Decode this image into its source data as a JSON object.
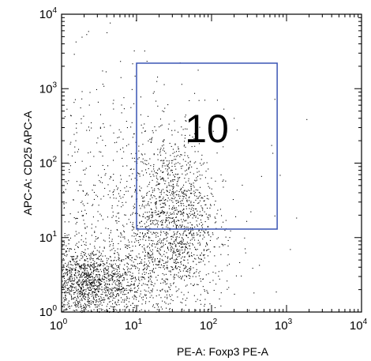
{
  "chart_data": {
    "type": "scatter",
    "xlabel": "PE-A: Foxp3 PE-A",
    "ylabel": "APC-A: CD25 APC-A",
    "xscale": "log",
    "yscale": "log",
    "xlim": [
      1,
      10000
    ],
    "ylim": [
      1,
      10000
    ],
    "x_ticks": [
      {
        "base": "10",
        "exp": "0"
      },
      {
        "base": "10",
        "exp": "1"
      },
      {
        "base": "10",
        "exp": "2"
      },
      {
        "base": "10",
        "exp": "3"
      },
      {
        "base": "10",
        "exp": "4"
      }
    ],
    "y_ticks": [
      {
        "base": "10",
        "exp": "0"
      },
      {
        "base": "10",
        "exp": "1"
      },
      {
        "base": "10",
        "exp": "2"
      },
      {
        "base": "10",
        "exp": "3"
      },
      {
        "base": "10",
        "exp": "4"
      }
    ],
    "gate": {
      "label": "10",
      "x_range": [
        10,
        750
      ],
      "y_range": [
        13,
        2200
      ],
      "color": "#3a55b4"
    },
    "populations": [
      {
        "cx": 2.2,
        "cy": 2.4,
        "sx": 0.6,
        "sy": 0.55,
        "n": 1500
      },
      {
        "cx": 30,
        "cy": 18,
        "sx": 0.45,
        "sy": 1.3,
        "n": 1300
      },
      {
        "cx": 3.5,
        "cy": 15,
        "sx": 0.9,
        "sy": 2.2,
        "n": 700
      },
      {
        "cx": 25,
        "cy": 3,
        "sx": 0.8,
        "sy": 0.7,
        "n": 250
      },
      {
        "cx": 60,
        "cy": 60,
        "sx": 1.0,
        "sy": 1.3,
        "n": 100
      }
    ],
    "point_color": "#000000",
    "grid": false,
    "legend": "none"
  }
}
